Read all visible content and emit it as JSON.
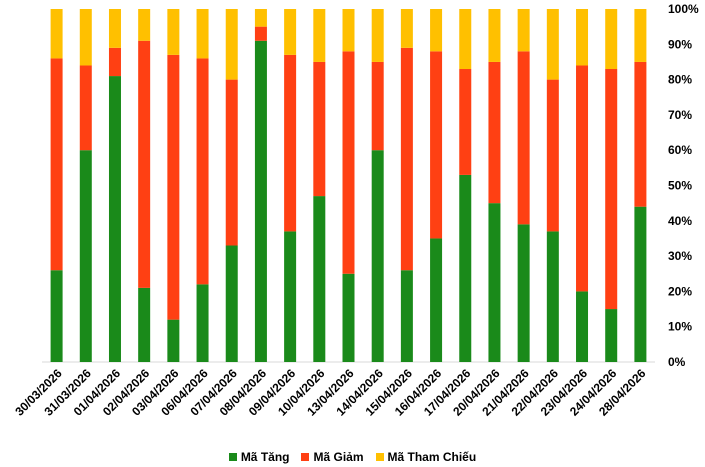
{
  "chart_data": {
    "type": "bar",
    "stacked": true,
    "categories": [
      "30/03/2026",
      "31/03/2026",
      "01/04/2026",
      "02/04/2026",
      "03/04/2026",
      "06/04/2026",
      "07/04/2026",
      "08/04/2026",
      "09/04/2026",
      "10/04/2026",
      "13/04/2026",
      "14/04/2026",
      "15/04/2026",
      "16/04/2026",
      "17/04/2026",
      "20/04/2026",
      "21/04/2026",
      "22/04/2026",
      "23/04/2026",
      "24/04/2026",
      "28/04/2026"
    ],
    "series": [
      {
        "name": "Mã Tăng",
        "color": "#1a8a1a",
        "values": [
          26,
          60,
          81,
          21,
          12,
          22,
          33,
          91,
          37,
          47,
          25,
          60,
          26,
          35,
          53,
          45,
          39,
          37,
          20,
          15,
          44
        ]
      },
      {
        "name": "Mã Giảm",
        "color": "#ff4013",
        "values": [
          60,
          24,
          8,
          70,
          75,
          64,
          47,
          4,
          50,
          38,
          63,
          25,
          63,
          53,
          30,
          40,
          49,
          43,
          64,
          68,
          41
        ]
      },
      {
        "name": "Mã Tham Chiếu",
        "color": "#ffc000",
        "values": [
          14,
          16,
          11,
          9,
          13,
          14,
          20,
          5,
          13,
          15,
          12,
          15,
          11,
          12,
          17,
          15,
          12,
          20,
          16,
          17,
          15
        ]
      }
    ],
    "y_ticks": [
      "0%",
      "10%",
      "20%",
      "30%",
      "40%",
      "50%",
      "60%",
      "70%",
      "80%",
      "90%",
      "100%"
    ],
    "ylim": [
      0,
      100
    ],
    "legend_position": "bottom"
  }
}
